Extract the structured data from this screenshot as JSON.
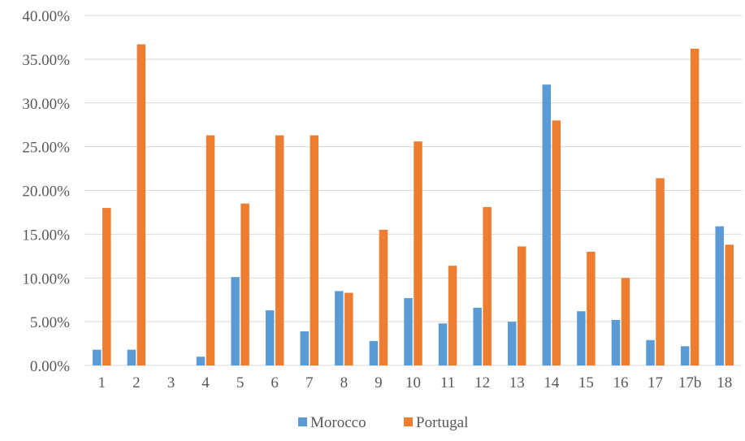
{
  "chart_data": {
    "type": "bar",
    "categories": [
      "1",
      "2",
      "3",
      "4",
      "5",
      "6",
      "7",
      "8",
      "9",
      "10",
      "11",
      "12",
      "13",
      "14",
      "15",
      "16",
      "17",
      "17b",
      "18"
    ],
    "series": [
      {
        "name": "Morocco",
        "color": "#5b9bd5",
        "values": [
          1.8,
          1.8,
          0,
          1.0,
          10.1,
          6.3,
          3.9,
          8.5,
          2.8,
          7.7,
          4.8,
          6.6,
          5.0,
          32.1,
          6.2,
          5.2,
          2.9,
          2.2,
          15.9
        ]
      },
      {
        "name": "Portugal",
        "color": "#ed7d31",
        "values": [
          18.0,
          36.7,
          0,
          26.3,
          18.5,
          26.3,
          26.3,
          8.3,
          15.5,
          25.6,
          11.4,
          18.1,
          13.6,
          28.0,
          13.0,
          10.0,
          21.4,
          36.2,
          13.8
        ]
      }
    ],
    "yticks": [
      "0.00%",
      "5.00%",
      "10.00%",
      "15.00%",
      "20.00%",
      "25.00%",
      "30.00%",
      "35.00%",
      "40.00%"
    ],
    "ylim": [
      0,
      40
    ],
    "legend_position": "bottom",
    "grid": true
  }
}
